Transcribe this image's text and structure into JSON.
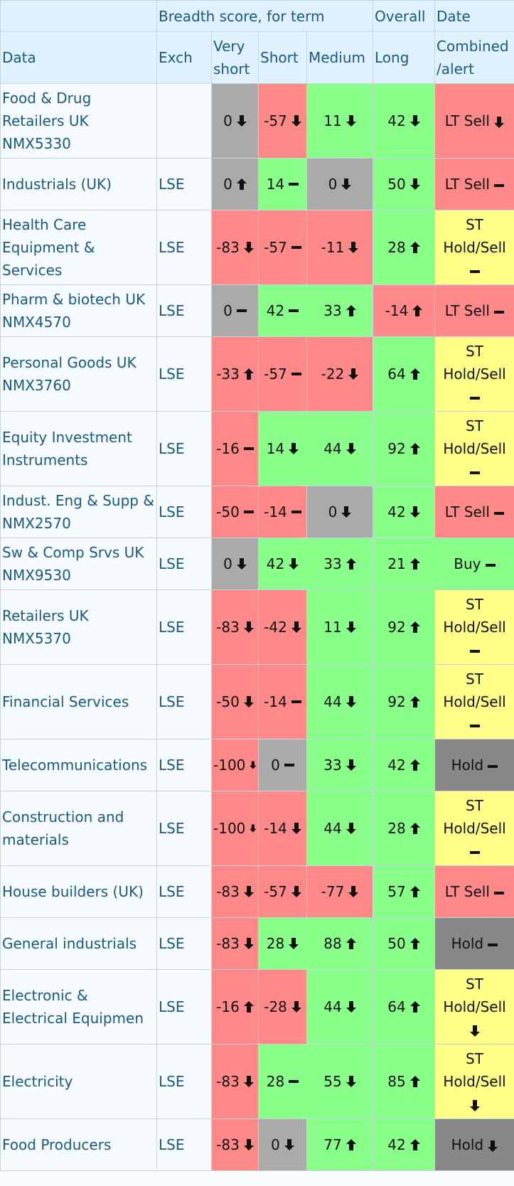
{
  "header": {
    "group": "Breadth score, for term",
    "overall": "Overall",
    "date": "Date",
    "columns": [
      "Data",
      "Exch",
      "Very short",
      "Short",
      "Medium",
      "Long",
      "Combined /alert"
    ]
  },
  "rows": [
    {
      "name": "Food & Drug Retailers UK NMX5330",
      "cells": [
        {
          "text": "0",
          "color": "#aaaaaa",
          "arrow": "down"
        },
        {
          "text": "-57",
          "color": "#ff8888",
          "arrow": "down"
        },
        {
          "text": "11",
          "color": "#88ff88",
          "arrow": "down"
        },
        {
          "text": "42",
          "color": "#88ff88",
          "arrow": "down"
        }
      ],
      "alert": {
        "text": "LT Sell",
        "color": "#ff8888",
        "arrow": "down"
      },
      "tall": true
    },
    {
      "name": "Industrials (UK)",
      "exch": "LSE",
      "cells": [
        {
          "text": "0",
          "color": "#aaaaaa",
          "arrow": "up"
        },
        {
          "text": "14",
          "color": "#88ff88",
          "arrow": "dash"
        },
        {
          "text": "0",
          "color": "#aaaaaa",
          "arrow": "down"
        },
        {
          "text": "50",
          "color": "#88ff88",
          "arrow": "down"
        }
      ],
      "alert": {
        "text": "LT Sell",
        "color": "#ff8888",
        "arrow": "dash"
      },
      "tall": false
    },
    {
      "name": "Health Care Equipment & Services",
      "exch": "LSE",
      "cells": [
        {
          "text": "-83",
          "color": "#ff8888",
          "arrow": "down"
        },
        {
          "text": "-57",
          "color": "#ff8888",
          "arrow": "dash"
        },
        {
          "text": "-11",
          "color": "#ff8888",
          "arrow": "down"
        },
        {
          "text": "28",
          "color": "#88ff88",
          "arrow": "up"
        }
      ],
      "alert": {
        "text": "ST Hold/Sell",
        "color": "#ffff88",
        "arrow": "dash"
      },
      "tall": true
    },
    {
      "name": "Pharm & biotech UK NMX4570",
      "exch": "LSE",
      "cells": [
        {
          "text": "0",
          "color": "#aaaaaa",
          "arrow": "dash"
        },
        {
          "text": "42",
          "color": "#88ff88",
          "arrow": "dash"
        },
        {
          "text": "33",
          "color": "#88ff88",
          "arrow": "up"
        },
        {
          "text": "-14",
          "color": "#ff8888",
          "arrow": "up"
        }
      ],
      "alert": {
        "text": "LT Sell",
        "color": "#ff8888",
        "arrow": "dash"
      },
      "tall": false
    },
    {
      "name": "Personal Goods UK NMX3760",
      "exch": "LSE",
      "cells": [
        {
          "text": "-33",
          "color": "#ff8888",
          "arrow": "up"
        },
        {
          "text": "-57",
          "color": "#ff8888",
          "arrow": "dash"
        },
        {
          "text": "-22",
          "color": "#ff8888",
          "arrow": "down"
        },
        {
          "text": "64",
          "color": "#88ff88",
          "arrow": "up"
        }
      ],
      "alert": {
        "text": "ST Hold/Sell",
        "color": "#ffff88",
        "arrow": "dash"
      },
      "tall": true
    },
    {
      "name": "Equity Investment Instruments",
      "exch": "LSE",
      "cells": [
        {
          "text": "-16",
          "color": "#ff8888",
          "arrow": "dash"
        },
        {
          "text": "14",
          "color": "#88ff88",
          "arrow": "down"
        },
        {
          "text": "44",
          "color": "#88ff88",
          "arrow": "down"
        },
        {
          "text": "92",
          "color": "#88ff88",
          "arrow": "up"
        }
      ],
      "alert": {
        "text": "ST Hold/Sell",
        "color": "#ffff88",
        "arrow": "dash"
      },
      "tall": true
    },
    {
      "name": "Indust. Eng & Supp & NMX2570",
      "exch": "LSE",
      "cells": [
        {
          "text": "-50",
          "color": "#ff8888",
          "arrow": "dash"
        },
        {
          "text": "-14",
          "color": "#ff8888",
          "arrow": "dash"
        },
        {
          "text": "0",
          "color": "#aaaaaa",
          "arrow": "down"
        },
        {
          "text": "42",
          "color": "#88ff88",
          "arrow": "down"
        }
      ],
      "alert": {
        "text": "LT Sell",
        "color": "#ff8888",
        "arrow": "dash"
      },
      "tall": false
    },
    {
      "name": "Sw & Comp Srvs UK NMX9530",
      "exch": "LSE",
      "cells": [
        {
          "text": "0",
          "color": "#aaaaaa",
          "arrow": "down"
        },
        {
          "text": "42",
          "color": "#88ff88",
          "arrow": "down"
        },
        {
          "text": "33",
          "color": "#88ff88",
          "arrow": "up"
        },
        {
          "text": "21",
          "color": "#88ff88",
          "arrow": "up"
        }
      ],
      "alert": {
        "text": "Buy",
        "color": "#88ff88",
        "arrow": "dash"
      },
      "tall": false
    },
    {
      "name": "Retailers UK NMX5370",
      "exch": "LSE",
      "cells": [
        {
          "text": "-83",
          "color": "#ff8888",
          "arrow": "down"
        },
        {
          "text": "-42",
          "color": "#ff8888",
          "arrow": "down"
        },
        {
          "text": "11",
          "color": "#88ff88",
          "arrow": "down"
        },
        {
          "text": "92",
          "color": "#88ff88",
          "arrow": "up"
        }
      ],
      "alert": {
        "text": "ST Hold/Sell",
        "color": "#ffff88",
        "arrow": "dash"
      },
      "tall": true
    },
    {
      "name": "Financial Services",
      "exch": "LSE",
      "cells": [
        {
          "text": "-50",
          "color": "#ff8888",
          "arrow": "down"
        },
        {
          "text": "-14",
          "color": "#ff8888",
          "arrow": "dash"
        },
        {
          "text": "44",
          "color": "#88ff88",
          "arrow": "down"
        },
        {
          "text": "92",
          "color": "#88ff88",
          "arrow": "up"
        }
      ],
      "alert": {
        "text": "ST Hold/Sell",
        "color": "#ffff88",
        "arrow": "dash"
      },
      "tall": true
    },
    {
      "name": "Telecommunications",
      "exch": "LSE",
      "cells": [
        {
          "text": "-100",
          "color": "#ff8888",
          "arrow": "down"
        },
        {
          "text": "0",
          "color": "#aaaaaa",
          "arrow": "dash"
        },
        {
          "text": "33",
          "color": "#88ff88",
          "arrow": "down"
        },
        {
          "text": "42",
          "color": "#88ff88",
          "arrow": "up"
        }
      ],
      "alert": {
        "text": "Hold",
        "color": "#888888",
        "arrow": "dash"
      },
      "tall": false
    },
    {
      "name": "Construction and materials",
      "exch": "LSE",
      "cells": [
        {
          "text": "-100",
          "color": "#ff8888",
          "arrow": "down"
        },
        {
          "text": "-14",
          "color": "#ff8888",
          "arrow": "down"
        },
        {
          "text": "44",
          "color": "#88ff88",
          "arrow": "down"
        },
        {
          "text": "28",
          "color": "#88ff88",
          "arrow": "up"
        }
      ],
      "alert": {
        "text": "ST Hold/Sell",
        "color": "#ffff88",
        "arrow": "dash"
      },
      "tall": true
    },
    {
      "name": "House builders (UK)",
      "exch": "LSE",
      "cells": [
        {
          "text": "-83",
          "color": "#ff8888",
          "arrow": "down"
        },
        {
          "text": "-57",
          "color": "#ff8888",
          "arrow": "down"
        },
        {
          "text": "-77",
          "color": "#ff8888",
          "arrow": "down"
        },
        {
          "text": "57",
          "color": "#88ff88",
          "arrow": "up"
        }
      ],
      "alert": {
        "text": "LT Sell",
        "color": "#ff8888",
        "arrow": "dash"
      },
      "tall": false
    },
    {
      "name": "General industrials",
      "exch": "LSE",
      "cells": [
        {
          "text": "-83",
          "color": "#ff8888",
          "arrow": "down"
        },
        {
          "text": "28",
          "color": "#88ff88",
          "arrow": "down"
        },
        {
          "text": "88",
          "color": "#88ff88",
          "arrow": "up"
        },
        {
          "text": "50",
          "color": "#88ff88",
          "arrow": "up"
        }
      ],
      "alert": {
        "text": "Hold",
        "color": "#888888",
        "arrow": "dash"
      },
      "tall": false
    },
    {
      "name": "Electronic & Electrical Equipmen",
      "exch": "LSE",
      "cells": [
        {
          "text": "-16",
          "color": "#ff8888",
          "arrow": "up"
        },
        {
          "text": "-28",
          "color": "#ff8888",
          "arrow": "down"
        },
        {
          "text": "44",
          "color": "#88ff88",
          "arrow": "down"
        },
        {
          "text": "64",
          "color": "#88ff88",
          "arrow": "up"
        }
      ],
      "alert": {
        "text": "ST Hold/Sell",
        "color": "#ffff88",
        "arrow": "down"
      },
      "tall": true
    },
    {
      "name": "Electricity",
      "exch": "LSE",
      "cells": [
        {
          "text": "-83",
          "color": "#ff8888",
          "arrow": "down"
        },
        {
          "text": "28",
          "color": "#88ff88",
          "arrow": "dash"
        },
        {
          "text": "55",
          "color": "#88ff88",
          "arrow": "down"
        },
        {
          "text": "85",
          "color": "#88ff88",
          "arrow": "up"
        }
      ],
      "alert": {
        "text": "ST Hold/Sell",
        "color": "#ffff88",
        "arrow": "down"
      },
      "tall": true
    },
    {
      "name": "Food Producers",
      "exch": "LSE",
      "cells": [
        {
          "text": "-83",
          "color": "#ff8888",
          "arrow": "down"
        },
        {
          "text": "0",
          "color": "#aaaaaa",
          "arrow": "down"
        },
        {
          "text": "77",
          "color": "#88ff88",
          "arrow": "up"
        },
        {
          "text": "42",
          "color": "#88ff88",
          "arrow": "up"
        }
      ],
      "alert": {
        "text": "Hold",
        "color": "#888888",
        "arrow": "down"
      },
      "tall": false
    }
  ]
}
